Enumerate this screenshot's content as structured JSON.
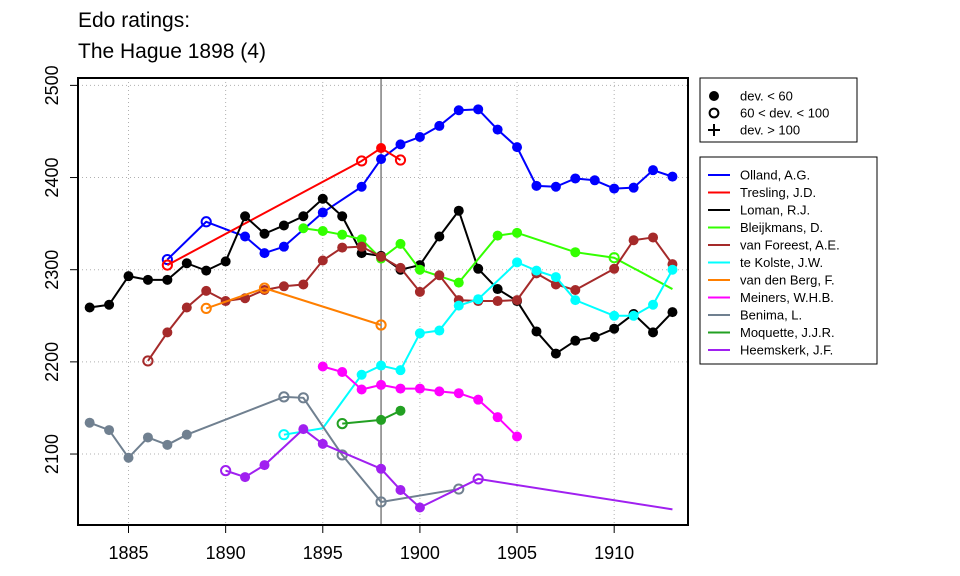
{
  "chart_data": {
    "type": "line",
    "title": [
      "Edo ratings:",
      "The Hague 1898 (4)"
    ],
    "xlabel": "",
    "ylabel": "",
    "xlim": [
      1882.4,
      1913.8
    ],
    "ylim": [
      2023,
      2508
    ],
    "xticks": [
      1885,
      1890,
      1895,
      1900,
      1905,
      1910
    ],
    "yticks": [
      2100,
      2200,
      2300,
      2400,
      2500
    ],
    "grid": true,
    "event_year": 1898,
    "marker_legend": [
      {
        "symbol": "filled",
        "label": "dev. < 60"
      },
      {
        "symbol": "open",
        "label": "60 < dev. < 100"
      },
      {
        "symbol": "plus",
        "label": "dev. > 100"
      }
    ],
    "series": [
      {
        "name": "Olland, A.G.",
        "color": "#0000ff",
        "points": [
          {
            "x": 1887,
            "y": 2311,
            "m": "o"
          },
          {
            "x": 1889,
            "y": 2352,
            "m": "o"
          },
          {
            "x": 1891,
            "y": 2336,
            "m": "f"
          },
          {
            "x": 1892,
            "y": 2318,
            "m": "f"
          },
          {
            "x": 1893,
            "y": 2325,
            "m": "f"
          },
          {
            "x": 1895,
            "y": 2362,
            "m": "f"
          },
          {
            "x": 1897,
            "y": 2390,
            "m": "f"
          },
          {
            "x": 1898,
            "y": 2420,
            "m": "f"
          },
          {
            "x": 1899,
            "y": 2436,
            "m": "f"
          },
          {
            "x": 1900,
            "y": 2444,
            "m": "f"
          },
          {
            "x": 1901,
            "y": 2456,
            "m": "f"
          },
          {
            "x": 1902,
            "y": 2473,
            "m": "f"
          },
          {
            "x": 1903,
            "y": 2474,
            "m": "f"
          },
          {
            "x": 1904,
            "y": 2452,
            "m": "f"
          },
          {
            "x": 1905,
            "y": 2433,
            "m": "f"
          },
          {
            "x": 1906,
            "y": 2391,
            "m": "f"
          },
          {
            "x": 1907,
            "y": 2390,
            "m": "f"
          },
          {
            "x": 1908,
            "y": 2399,
            "m": "f"
          },
          {
            "x": 1909,
            "y": 2397,
            "m": "f"
          },
          {
            "x": 1910,
            "y": 2388,
            "m": "f"
          },
          {
            "x": 1911,
            "y": 2389,
            "m": "f"
          },
          {
            "x": 1912,
            "y": 2408,
            "m": "f"
          },
          {
            "x": 1913,
            "y": 2401,
            "m": "f"
          }
        ]
      },
      {
        "name": "Tresling, J.D.",
        "color": "#ff0000",
        "points": [
          {
            "x": 1887,
            "y": 2305,
            "m": "o"
          },
          {
            "x": 1897,
            "y": 2418,
            "m": "o"
          },
          {
            "x": 1898,
            "y": 2432,
            "m": "f"
          },
          {
            "x": 1899,
            "y": 2419,
            "m": "o"
          }
        ]
      },
      {
        "name": "Loman, R.J.",
        "color": "#000000",
        "points": [
          {
            "x": 1883,
            "y": 2259,
            "m": "f"
          },
          {
            "x": 1884,
            "y": 2262,
            "m": "f"
          },
          {
            "x": 1885,
            "y": 2293,
            "m": "f"
          },
          {
            "x": 1886,
            "y": 2289,
            "m": "f"
          },
          {
            "x": 1887,
            "y": 2289,
            "m": "f"
          },
          {
            "x": 1888,
            "y": 2307,
            "m": "f"
          },
          {
            "x": 1889,
            "y": 2299,
            "m": "f"
          },
          {
            "x": 1890,
            "y": 2309,
            "m": "f"
          },
          {
            "x": 1891,
            "y": 2358,
            "m": "f"
          },
          {
            "x": 1892,
            "y": 2339,
            "m": "f"
          },
          {
            "x": 1893,
            "y": 2348,
            "m": "f"
          },
          {
            "x": 1894,
            "y": 2358,
            "m": "f"
          },
          {
            "x": 1895,
            "y": 2377,
            "m": "f"
          },
          {
            "x": 1896,
            "y": 2358,
            "m": "f"
          },
          {
            "x": 1897,
            "y": 2318,
            "m": "f"
          },
          {
            "x": 1898,
            "y": 2315,
            "m": "f"
          },
          {
            "x": 1899,
            "y": 2300,
            "m": "f"
          },
          {
            "x": 1900,
            "y": 2305,
            "m": "f"
          },
          {
            "x": 1901,
            "y": 2336,
            "m": "f"
          },
          {
            "x": 1902,
            "y": 2364,
            "m": "f"
          },
          {
            "x": 1903,
            "y": 2301,
            "m": "f"
          },
          {
            "x": 1904,
            "y": 2279,
            "m": "f"
          },
          {
            "x": 1905,
            "y": 2266,
            "m": "f"
          },
          {
            "x": 1906,
            "y": 2233,
            "m": "f"
          },
          {
            "x": 1907,
            "y": 2209,
            "m": "f"
          },
          {
            "x": 1908,
            "y": 2223,
            "m": "f"
          },
          {
            "x": 1909,
            "y": 2227,
            "m": "f"
          },
          {
            "x": 1910,
            "y": 2236,
            "m": "f"
          },
          {
            "x": 1911,
            "y": 2252,
            "m": "f"
          },
          {
            "x": 1912,
            "y": 2232,
            "m": "f"
          },
          {
            "x": 1913,
            "y": 2254,
            "m": "f"
          }
        ]
      },
      {
        "name": "Bleijkmans, D.",
        "color": "#33ff00",
        "points": [
          {
            "x": 1894,
            "y": 2345,
            "m": "f"
          },
          {
            "x": 1895,
            "y": 2342,
            "m": "f"
          },
          {
            "x": 1896,
            "y": 2338,
            "m": "f"
          },
          {
            "x": 1897,
            "y": 2333,
            "m": "f"
          },
          {
            "x": 1898,
            "y": 2312,
            "m": "f"
          },
          {
            "x": 1899,
            "y": 2328,
            "m": "f"
          },
          {
            "x": 1900,
            "y": 2300,
            "m": "f"
          },
          {
            "x": 1902,
            "y": 2286,
            "m": "f"
          },
          {
            "x": 1904,
            "y": 2337,
            "m": "f"
          },
          {
            "x": 1905,
            "y": 2340,
            "m": "f"
          },
          {
            "x": 1908,
            "y": 2319,
            "m": "f"
          },
          {
            "x": 1910,
            "y": 2313,
            "m": "o"
          },
          {
            "x": 1913,
            "y": 2279,
            "m": "n"
          }
        ]
      },
      {
        "name": "van Foreest, A.E.",
        "color": "#a52a2a",
        "points": [
          {
            "x": 1886,
            "y": 2201,
            "m": "o"
          },
          {
            "x": 1887,
            "y": 2232,
            "m": "f"
          },
          {
            "x": 1888,
            "y": 2259,
            "m": "f"
          },
          {
            "x": 1889,
            "y": 2277,
            "m": "f"
          },
          {
            "x": 1890,
            "y": 2266,
            "m": "f"
          },
          {
            "x": 1891,
            "y": 2269,
            "m": "f"
          },
          {
            "x": 1892,
            "y": 2278,
            "m": "f"
          },
          {
            "x": 1893,
            "y": 2282,
            "m": "f"
          },
          {
            "x": 1894,
            "y": 2284,
            "m": "f"
          },
          {
            "x": 1895,
            "y": 2310,
            "m": "f"
          },
          {
            "x": 1896,
            "y": 2324,
            "m": "f"
          },
          {
            "x": 1897,
            "y": 2325,
            "m": "f"
          },
          {
            "x": 1898,
            "y": 2314,
            "m": "f"
          },
          {
            "x": 1899,
            "y": 2302,
            "m": "f"
          },
          {
            "x": 1900,
            "y": 2276,
            "m": "f"
          },
          {
            "x": 1901,
            "y": 2294,
            "m": "f"
          },
          {
            "x": 1902,
            "y": 2267,
            "m": "f"
          },
          {
            "x": 1903,
            "y": 2266,
            "m": "f"
          },
          {
            "x": 1904,
            "y": 2266,
            "m": "f"
          },
          {
            "x": 1905,
            "y": 2267,
            "m": "f"
          },
          {
            "x": 1906,
            "y": 2296,
            "m": "f"
          },
          {
            "x": 1907,
            "y": 2284,
            "m": "f"
          },
          {
            "x": 1908,
            "y": 2278,
            "m": "f"
          },
          {
            "x": 1910,
            "y": 2301,
            "m": "f"
          },
          {
            "x": 1911,
            "y": 2332,
            "m": "f"
          },
          {
            "x": 1912,
            "y": 2335,
            "m": "f"
          },
          {
            "x": 1913,
            "y": 2306,
            "m": "f"
          }
        ]
      },
      {
        "name": "te Kolste, J.W.",
        "color": "#00ffff",
        "points": [
          {
            "x": 1893,
            "y": 2121,
            "m": "o"
          },
          {
            "x": 1895,
            "y": 2128,
            "m": "n"
          },
          {
            "x": 1897,
            "y": 2186,
            "m": "f"
          },
          {
            "x": 1898,
            "y": 2196,
            "m": "f"
          },
          {
            "x": 1899,
            "y": 2191,
            "m": "f"
          },
          {
            "x": 1900,
            "y": 2231,
            "m": "f"
          },
          {
            "x": 1901,
            "y": 2234,
            "m": "f"
          },
          {
            "x": 1902,
            "y": 2261,
            "m": "f"
          },
          {
            "x": 1903,
            "y": 2268,
            "m": "f"
          },
          {
            "x": 1905,
            "y": 2308,
            "m": "f"
          },
          {
            "x": 1906,
            "y": 2299,
            "m": "f"
          },
          {
            "x": 1907,
            "y": 2292,
            "m": "f"
          },
          {
            "x": 1908,
            "y": 2267,
            "m": "f"
          },
          {
            "x": 1910,
            "y": 2250,
            "m": "f"
          },
          {
            "x": 1911,
            "y": 2250,
            "m": "f"
          },
          {
            "x": 1912,
            "y": 2262,
            "m": "f"
          },
          {
            "x": 1913,
            "y": 2300,
            "m": "f"
          }
        ]
      },
      {
        "name": "van den Berg, F.",
        "color": "#ff7f00",
        "points": [
          {
            "x": 1889,
            "y": 2258,
            "m": "o"
          },
          {
            "x": 1892,
            "y": 2280,
            "m": "o"
          },
          {
            "x": 1898,
            "y": 2240,
            "m": "o"
          }
        ]
      },
      {
        "name": "Meiners, W.H.B.",
        "color": "#ff00ff",
        "points": [
          {
            "x": 1895,
            "y": 2195,
            "m": "f"
          },
          {
            "x": 1896,
            "y": 2189,
            "m": "f"
          },
          {
            "x": 1897,
            "y": 2170,
            "m": "f"
          },
          {
            "x": 1898,
            "y": 2175,
            "m": "f"
          },
          {
            "x": 1899,
            "y": 2171,
            "m": "f"
          },
          {
            "x": 1900,
            "y": 2171,
            "m": "f"
          },
          {
            "x": 1901,
            "y": 2168,
            "m": "f"
          },
          {
            "x": 1902,
            "y": 2166,
            "m": "f"
          },
          {
            "x": 1903,
            "y": 2159,
            "m": "f"
          },
          {
            "x": 1904,
            "y": 2140,
            "m": "f"
          },
          {
            "x": 1905,
            "y": 2119,
            "m": "f"
          }
        ]
      },
      {
        "name": "Benima, L.",
        "color": "#708090",
        "points": [
          {
            "x": 1883,
            "y": 2134,
            "m": "f"
          },
          {
            "x": 1884,
            "y": 2126,
            "m": "f"
          },
          {
            "x": 1885,
            "y": 2096,
            "m": "f"
          },
          {
            "x": 1886,
            "y": 2118,
            "m": "f"
          },
          {
            "x": 1887,
            "y": 2110,
            "m": "f"
          },
          {
            "x": 1888,
            "y": 2121,
            "m": "f"
          },
          {
            "x": 1893,
            "y": 2162,
            "m": "o"
          },
          {
            "x": 1894,
            "y": 2161,
            "m": "o"
          },
          {
            "x": 1896,
            "y": 2099,
            "m": "o"
          },
          {
            "x": 1898,
            "y": 2048,
            "m": "o"
          },
          {
            "x": 1902,
            "y": 2062,
            "m": "o"
          }
        ]
      },
      {
        "name": "Moquette, J.J.R.",
        "color": "#22a022",
        "points": [
          {
            "x": 1896,
            "y": 2133,
            "m": "o"
          },
          {
            "x": 1898,
            "y": 2137,
            "m": "f"
          },
          {
            "x": 1899,
            "y": 2147,
            "m": "f"
          }
        ]
      },
      {
        "name": "Heemskerk, J.F.",
        "color": "#a020f0",
        "points": [
          {
            "x": 1890,
            "y": 2082,
            "m": "o"
          },
          {
            "x": 1891,
            "y": 2075,
            "m": "f"
          },
          {
            "x": 1892,
            "y": 2088,
            "m": "f"
          },
          {
            "x": 1894,
            "y": 2127,
            "m": "f"
          },
          {
            "x": 1895,
            "y": 2111,
            "m": "f"
          },
          {
            "x": 1898,
            "y": 2084,
            "m": "f"
          },
          {
            "x": 1899,
            "y": 2061,
            "m": "f"
          },
          {
            "x": 1900,
            "y": 2042,
            "m": "f"
          },
          {
            "x": 1903,
            "y": 2073,
            "m": "o"
          },
          {
            "x": 1913,
            "y": 2040,
            "m": "n"
          }
        ]
      }
    ]
  }
}
